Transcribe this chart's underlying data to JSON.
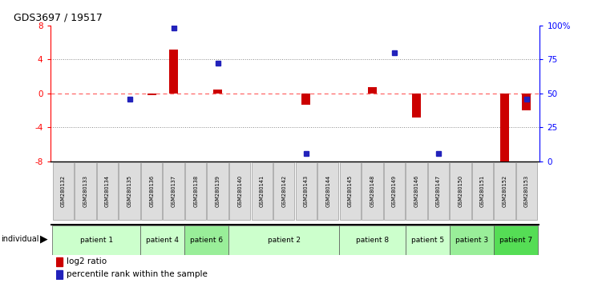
{
  "title": "GDS3697 / 19517",
  "samples": [
    "GSM280132",
    "GSM280133",
    "GSM280134",
    "GSM280135",
    "GSM280136",
    "GSM280137",
    "GSM280138",
    "GSM280139",
    "GSM280140",
    "GSM280141",
    "GSM280142",
    "GSM280143",
    "GSM280144",
    "GSM280145",
    "GSM280148",
    "GSM280149",
    "GSM280146",
    "GSM280147",
    "GSM280150",
    "GSM280151",
    "GSM280152",
    "GSM280153"
  ],
  "log2_ratio": [
    0.0,
    0.0,
    0.0,
    0.0,
    -0.2,
    5.2,
    0.0,
    0.5,
    0.0,
    0.0,
    0.0,
    -1.3,
    0.0,
    0.0,
    0.7,
    0.0,
    -2.8,
    0.0,
    0.0,
    0.0,
    -8.2,
    -2.0
  ],
  "percentile_rank_pct": [
    null,
    null,
    null,
    46,
    null,
    98,
    null,
    72,
    null,
    null,
    null,
    6,
    null,
    null,
    null,
    80,
    null,
    6,
    null,
    null,
    null,
    46
  ],
  "patients": [
    {
      "label": "patient 1",
      "start": 0,
      "end": 3,
      "color": "#ccffcc"
    },
    {
      "label": "patient 4",
      "start": 4,
      "end": 5,
      "color": "#ccffcc"
    },
    {
      "label": "patient 6",
      "start": 6,
      "end": 7,
      "color": "#99ee99"
    },
    {
      "label": "patient 2",
      "start": 8,
      "end": 12,
      "color": "#ccffcc"
    },
    {
      "label": "patient 8",
      "start": 13,
      "end": 15,
      "color": "#ccffcc"
    },
    {
      "label": "patient 5",
      "start": 16,
      "end": 17,
      "color": "#ccffcc"
    },
    {
      "label": "patient 3",
      "start": 18,
      "end": 19,
      "color": "#99ee99"
    },
    {
      "label": "patient 7",
      "start": 20,
      "end": 21,
      "color": "#55dd55"
    }
  ],
  "ylim_left": [
    -8,
    8
  ],
  "ylim_right": [
    0,
    100
  ],
  "yticks_left": [
    -8,
    -4,
    0,
    4,
    8
  ],
  "yticks_right": [
    0,
    25,
    50,
    75,
    100
  ],
  "y2labels": [
    "0",
    "25",
    "50",
    "75",
    "100%"
  ],
  "bar_color": "#cc0000",
  "dot_color": "#2222bb",
  "zero_line_color": "#ff6666",
  "grid_color": "#888888",
  "bg_color": "#ffffff",
  "sample_box_color": "#dddddd",
  "label_log2": "log2 ratio",
  "label_pct": "percentile rank within the sample",
  "bar_width": 0.4
}
